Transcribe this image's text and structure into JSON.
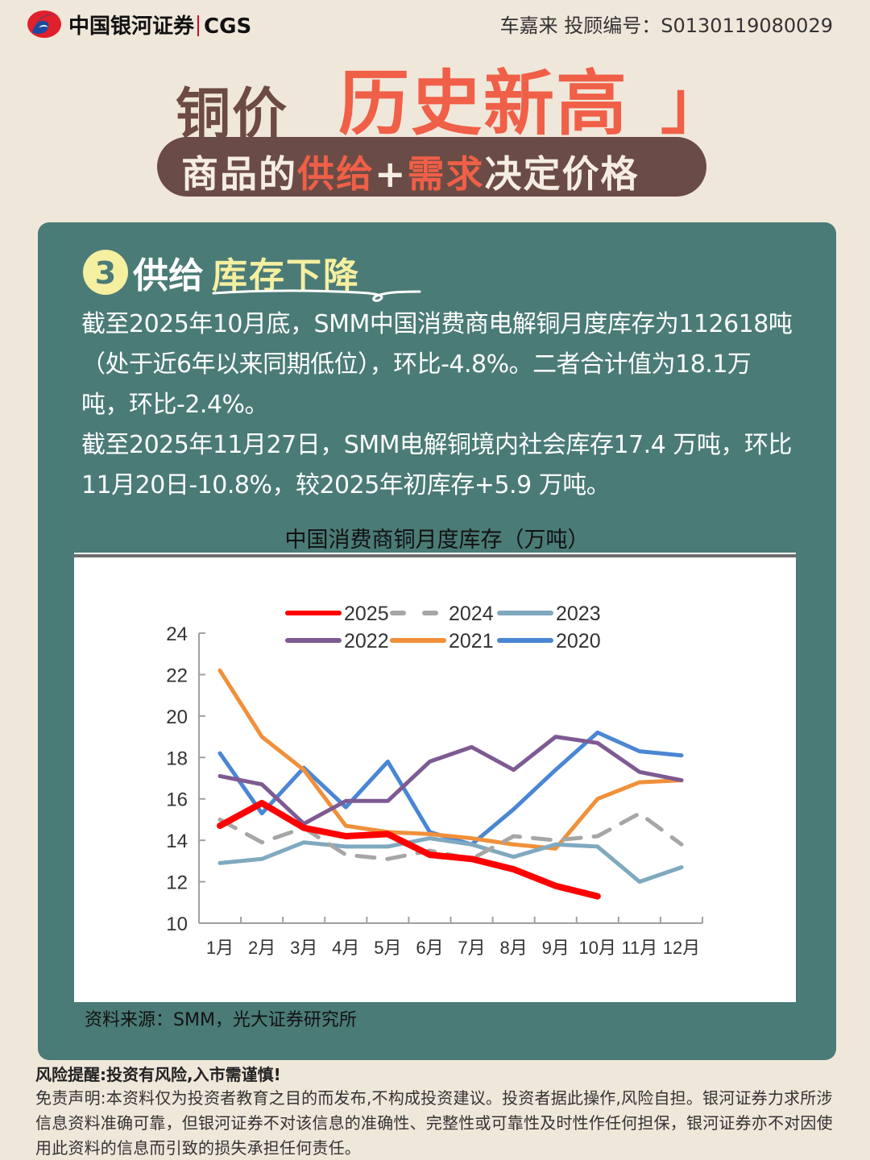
{
  "header": {
    "brand_cn": "中国银河证券",
    "brand_en": "CGS",
    "advisor": "车嘉来 投顾编号：S0130119080029"
  },
  "title": {
    "prefix": "铜价",
    "bracket_left": "「",
    "highlight": "历史新高",
    "bracket_right": "」",
    "subtitle_part1": "商品的",
    "subtitle_hl1": "供给",
    "subtitle_plus": "+",
    "subtitle_hl2": "需求",
    "subtitle_part2": "决定价格"
  },
  "section": {
    "number": "3",
    "label_white": "供给",
    "label_yellow": "库存下降",
    "paragraphs": [
      "截至2025年10月底，SMM中国消费商电解铜月度库存为112618吨（处于近6年以来同期低位），环比-4.8%。二者合计值为18.1万吨，环比-2.4%。",
      "截至2025年11月27日，SMM电解铜境内社会库存17.4 万吨，环比11月20日-10.8%，较2025年初库存+5.9 万吨。"
    ],
    "source": "资料来源：SMM，光大证券研究所"
  },
  "colors": {
    "background": "#f0e7db",
    "card": "#4a7b77",
    "accent_red": "#f05f47",
    "accent_brown": "#6b4b45",
    "accent_yellow": "#f5efa0"
  },
  "chart_data": {
    "type": "line",
    "title": "中国消费商铜月度库存（万吨）",
    "xlabel": "",
    "ylabel": "万吨",
    "ylim": [
      10,
      24
    ],
    "yticks": [
      10,
      12,
      14,
      16,
      18,
      20,
      22,
      24
    ],
    "categories": [
      "1月",
      "2月",
      "3月",
      "4月",
      "5月",
      "6月",
      "7月",
      "8月",
      "9月",
      "10月",
      "11月",
      "12月"
    ],
    "legend_position": "top",
    "grid": false,
    "series": [
      {
        "name": "2025",
        "color": "#ff0000",
        "style": "solid-thick",
        "values": [
          14.7,
          15.8,
          14.6,
          14.2,
          14.3,
          13.3,
          13.1,
          12.6,
          11.8,
          11.3,
          null,
          null
        ]
      },
      {
        "name": "2024",
        "color": "#a6a6a6",
        "style": "dashed",
        "values": [
          15.0,
          13.9,
          14.6,
          13.3,
          13.1,
          13.5,
          13.1,
          14.2,
          14.0,
          14.2,
          15.3,
          13.8
        ]
      },
      {
        "name": "2023",
        "color": "#7fa9bf",
        "style": "solid",
        "values": [
          12.9,
          13.1,
          13.9,
          13.7,
          13.7,
          14.1,
          13.8,
          13.2,
          13.8,
          13.7,
          12.0,
          12.7
        ]
      },
      {
        "name": "2022",
        "color": "#7e5a92",
        "style": "solid",
        "values": [
          17.1,
          16.7,
          14.8,
          15.9,
          15.9,
          17.8,
          18.5,
          17.4,
          19.0,
          18.7,
          17.3,
          16.9
        ]
      },
      {
        "name": "2021",
        "color": "#f0903a",
        "style": "solid",
        "values": [
          22.2,
          19.0,
          17.4,
          14.7,
          14.4,
          14.3,
          14.1,
          13.8,
          13.6,
          16.0,
          16.8,
          16.9
        ]
      },
      {
        "name": "2020",
        "color": "#4a86d4",
        "style": "solid",
        "values": [
          18.2,
          15.3,
          17.5,
          15.6,
          17.8,
          14.4,
          13.8,
          15.5,
          17.4,
          19.2,
          18.3,
          18.1
        ]
      }
    ]
  },
  "footer": {
    "risk": "风险提醒:投资有风险,入市需谨慎!",
    "disclaimer": "免责声明:本资料仅为投资者教育之目的而发布,不构成投资建议。投资者据此操作,风险自担。银河证券力求所涉信息资料准确可靠，但银河证券不对该信息的准确性、完整性或可靠性及时性作任何担保，银河证券亦不对因使用此资料的信息而引致的损失承担任何责任。"
  }
}
